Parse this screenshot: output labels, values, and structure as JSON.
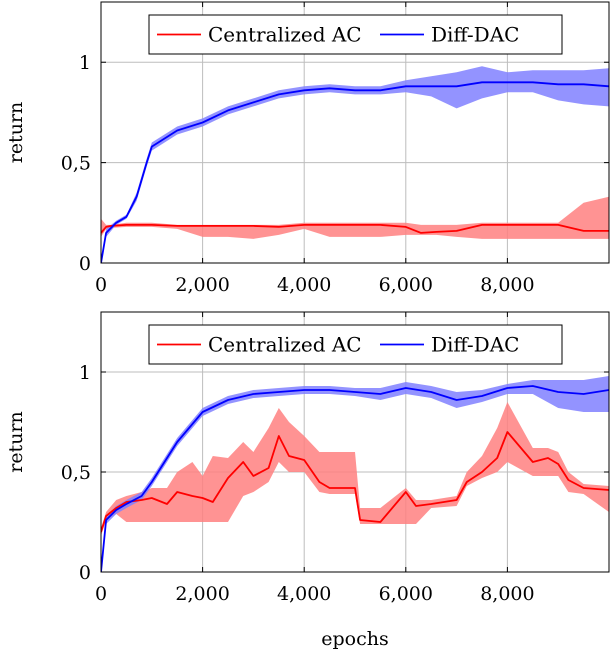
{
  "chart_data": [
    {
      "type": "line",
      "xlabel": "",
      "ylabel": "return",
      "xlim": [
        0,
        10000
      ],
      "ylim": [
        0,
        1.3
      ],
      "xticks": [
        0,
        2000,
        4000,
        6000,
        8000
      ],
      "xtick_labels": [
        "0",
        "2,000",
        "4,000",
        "6,000",
        "8,000"
      ],
      "yticks": [
        0,
        0.5,
        1
      ],
      "ytick_labels": [
        "0",
        "0,5",
        "1"
      ],
      "grid": true,
      "legend": "top-center",
      "series": [
        {
          "name": "Centralized AC",
          "color": "#ff0000",
          "band_color": "#ff8080",
          "x": [
            0,
            100,
            200,
            500,
            1000,
            1500,
            2000,
            2500,
            3000,
            3500,
            4000,
            4500,
            5000,
            5500,
            6000,
            6300,
            6600,
            7000,
            7500,
            8000,
            8500,
            9000,
            9500,
            9999
          ],
          "values": [
            0.15,
            0.18,
            0.185,
            0.19,
            0.19,
            0.185,
            0.185,
            0.185,
            0.185,
            0.18,
            0.19,
            0.19,
            0.19,
            0.19,
            0.18,
            0.15,
            0.155,
            0.16,
            0.19,
            0.19,
            0.19,
            0.19,
            0.16,
            0.16
          ],
          "lower": [
            0.13,
            0.17,
            0.175,
            0.18,
            0.18,
            0.17,
            0.13,
            0.13,
            0.12,
            0.14,
            0.17,
            0.13,
            0.13,
            0.13,
            0.14,
            0.14,
            0.14,
            0.13,
            0.12,
            0.12,
            0.12,
            0.12,
            0.12,
            0.12
          ],
          "upper": [
            0.22,
            0.19,
            0.19,
            0.2,
            0.2,
            0.19,
            0.19,
            0.19,
            0.19,
            0.19,
            0.2,
            0.2,
            0.2,
            0.2,
            0.2,
            0.19,
            0.19,
            0.19,
            0.2,
            0.2,
            0.2,
            0.2,
            0.3,
            0.33
          ]
        },
        {
          "name": "Diff-DAC",
          "color": "#0000ff",
          "band_color": "#8080ff",
          "x": [
            0,
            100,
            300,
            500,
            700,
            900,
            1000,
            1500,
            2000,
            2500,
            3000,
            3500,
            4000,
            4500,
            5000,
            5500,
            6000,
            6500,
            7000,
            7500,
            8000,
            8500,
            9000,
            9500,
            9999
          ],
          "values": [
            0.0,
            0.15,
            0.2,
            0.23,
            0.33,
            0.5,
            0.58,
            0.66,
            0.7,
            0.76,
            0.8,
            0.84,
            0.86,
            0.87,
            0.86,
            0.86,
            0.88,
            0.88,
            0.88,
            0.9,
            0.9,
            0.9,
            0.89,
            0.89,
            0.88
          ],
          "lower": [
            0.0,
            0.13,
            0.19,
            0.22,
            0.31,
            0.48,
            0.56,
            0.64,
            0.68,
            0.74,
            0.78,
            0.82,
            0.84,
            0.85,
            0.84,
            0.84,
            0.85,
            0.83,
            0.77,
            0.82,
            0.85,
            0.85,
            0.81,
            0.79,
            0.78
          ],
          "upper": [
            0.0,
            0.17,
            0.21,
            0.24,
            0.35,
            0.52,
            0.6,
            0.68,
            0.72,
            0.78,
            0.82,
            0.86,
            0.88,
            0.89,
            0.88,
            0.88,
            0.91,
            0.93,
            0.95,
            0.98,
            0.95,
            0.96,
            0.96,
            0.96,
            0.97
          ]
        }
      ]
    },
    {
      "type": "line",
      "xlabel": "epochs",
      "ylabel": "return",
      "xlim": [
        0,
        10000
      ],
      "ylim": [
        0,
        1.3
      ],
      "xticks": [
        0,
        2000,
        4000,
        6000,
        8000
      ],
      "xtick_labels": [
        "0",
        "2,000",
        "4,000",
        "6,000",
        "8,000"
      ],
      "yticks": [
        0,
        0.5,
        1
      ],
      "ytick_labels": [
        "0",
        "0,5",
        "1"
      ],
      "grid": true,
      "legend": "top-center",
      "series": [
        {
          "name": "Centralized AC",
          "color": "#ff0000",
          "band_color": "#ff8080",
          "x": [
            0,
            100,
            300,
            500,
            800,
            1000,
            1300,
            1500,
            1800,
            2000,
            2200,
            2500,
            2800,
            3000,
            3300,
            3500,
            3700,
            4000,
            4300,
            4500,
            5000,
            5100,
            5500,
            6000,
            6200,
            6500,
            7000,
            7200,
            7500,
            7800,
            8000,
            8500,
            8800,
            9000,
            9200,
            9500,
            9999
          ],
          "values": [
            0.2,
            0.28,
            0.32,
            0.35,
            0.36,
            0.37,
            0.34,
            0.4,
            0.38,
            0.37,
            0.35,
            0.47,
            0.55,
            0.48,
            0.52,
            0.68,
            0.58,
            0.56,
            0.45,
            0.42,
            0.42,
            0.26,
            0.25,
            0.4,
            0.33,
            0.34,
            0.36,
            0.45,
            0.5,
            0.57,
            0.7,
            0.55,
            0.57,
            0.54,
            0.46,
            0.42,
            0.41
          ],
          "lower": [
            0.18,
            0.26,
            0.29,
            0.25,
            0.25,
            0.25,
            0.25,
            0.25,
            0.25,
            0.25,
            0.25,
            0.25,
            0.38,
            0.4,
            0.45,
            0.55,
            0.5,
            0.5,
            0.4,
            0.39,
            0.39,
            0.24,
            0.24,
            0.24,
            0.24,
            0.32,
            0.33,
            0.43,
            0.47,
            0.5,
            0.55,
            0.48,
            0.48,
            0.48,
            0.4,
            0.39,
            0.3
          ],
          "upper": [
            0.22,
            0.3,
            0.36,
            0.38,
            0.4,
            0.42,
            0.42,
            0.5,
            0.55,
            0.48,
            0.58,
            0.57,
            0.65,
            0.6,
            0.72,
            0.82,
            0.75,
            0.68,
            0.6,
            0.6,
            0.6,
            0.32,
            0.32,
            0.42,
            0.36,
            0.36,
            0.38,
            0.5,
            0.58,
            0.72,
            0.85,
            0.62,
            0.62,
            0.6,
            0.5,
            0.44,
            0.43
          ]
        },
        {
          "name": "Diff-DAC",
          "color": "#0000ff",
          "band_color": "#8080ff",
          "x": [
            0,
            100,
            300,
            500,
            800,
            1000,
            1500,
            2000,
            2500,
            3000,
            3500,
            4000,
            4500,
            5000,
            5500,
            6000,
            6500,
            7000,
            7500,
            8000,
            8500,
            9000,
            9500,
            9999
          ],
          "values": [
            0.0,
            0.26,
            0.31,
            0.34,
            0.38,
            0.45,
            0.65,
            0.8,
            0.86,
            0.89,
            0.9,
            0.91,
            0.91,
            0.9,
            0.89,
            0.92,
            0.9,
            0.86,
            0.88,
            0.92,
            0.93,
            0.9,
            0.89,
            0.91
          ],
          "lower": [
            0.0,
            0.24,
            0.29,
            0.32,
            0.36,
            0.43,
            0.63,
            0.78,
            0.84,
            0.87,
            0.88,
            0.89,
            0.89,
            0.88,
            0.86,
            0.89,
            0.87,
            0.82,
            0.85,
            0.89,
            0.89,
            0.82,
            0.8,
            0.8
          ],
          "upper": [
            0.0,
            0.28,
            0.33,
            0.36,
            0.4,
            0.47,
            0.67,
            0.82,
            0.88,
            0.91,
            0.92,
            0.93,
            0.93,
            0.92,
            0.92,
            0.95,
            0.93,
            0.9,
            0.91,
            0.94,
            0.96,
            0.96,
            0.96,
            0.98
          ]
        }
      ]
    }
  ]
}
